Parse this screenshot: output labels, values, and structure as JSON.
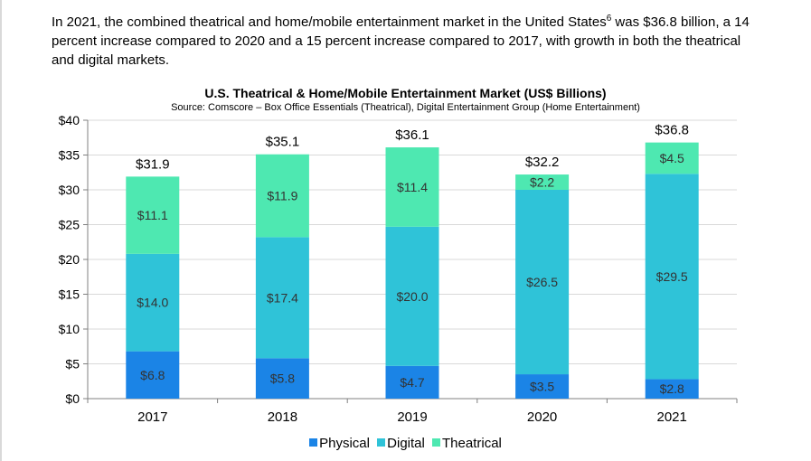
{
  "intro": {
    "part1": "In 2021, the combined theatrical and home/mobile entertainment market in the United States",
    "footnote": "6",
    "part2": " was $36.8 billion, a 14 percent increase compared to 2020 and a 15 percent increase compared to 2017, with growth in both the theatrical and digital markets."
  },
  "colors": {
    "physical": "#1b84e6",
    "digital": "#2fc3d8",
    "theatrical": "#4ee8b1",
    "grid": "#d9d9d9",
    "axis": "#808080"
  },
  "chart_data": {
    "type": "bar",
    "stacked": true,
    "title": "U.S. Theatrical & Home/Mobile Entertainment Market (US$ Billions)",
    "subtitle": "Source: Comscore – Box Office Essentials (Theatrical), Digital Entertainment Group (Home Entertainment)",
    "categories": [
      "2017",
      "2018",
      "2019",
      "2020",
      "2021"
    ],
    "series": [
      {
        "name": "Physical",
        "values": [
          6.8,
          5.8,
          4.7,
          3.5,
          2.8
        ],
        "labels": [
          "$6.8",
          "$5.8",
          "$4.7",
          "$3.5",
          "$2.8"
        ]
      },
      {
        "name": "Digital",
        "values": [
          14.0,
          17.4,
          20.0,
          26.5,
          29.5
        ],
        "labels": [
          "$14.0",
          "$17.4",
          "$20.0",
          "$26.5",
          "$29.5"
        ]
      },
      {
        "name": "Theatrical",
        "values": [
          11.1,
          11.9,
          11.4,
          2.2,
          4.5
        ],
        "labels": [
          "$11.1",
          "$11.9",
          "$11.4",
          "$2.2",
          "$4.5"
        ]
      }
    ],
    "totals": [
      31.9,
      35.1,
      36.1,
      32.2,
      36.8
    ],
    "total_labels": [
      "$31.9",
      "$35.1",
      "$36.1",
      "$32.2",
      "$36.8"
    ],
    "ylim": [
      0,
      40
    ],
    "yticks": [
      0,
      5,
      10,
      15,
      20,
      25,
      30,
      35,
      40
    ],
    "ytick_labels": [
      "$0",
      "$5",
      "$10",
      "$15",
      "$20",
      "$25",
      "$30",
      "$35",
      "$40"
    ],
    "grid": true,
    "legend": "bottom"
  }
}
